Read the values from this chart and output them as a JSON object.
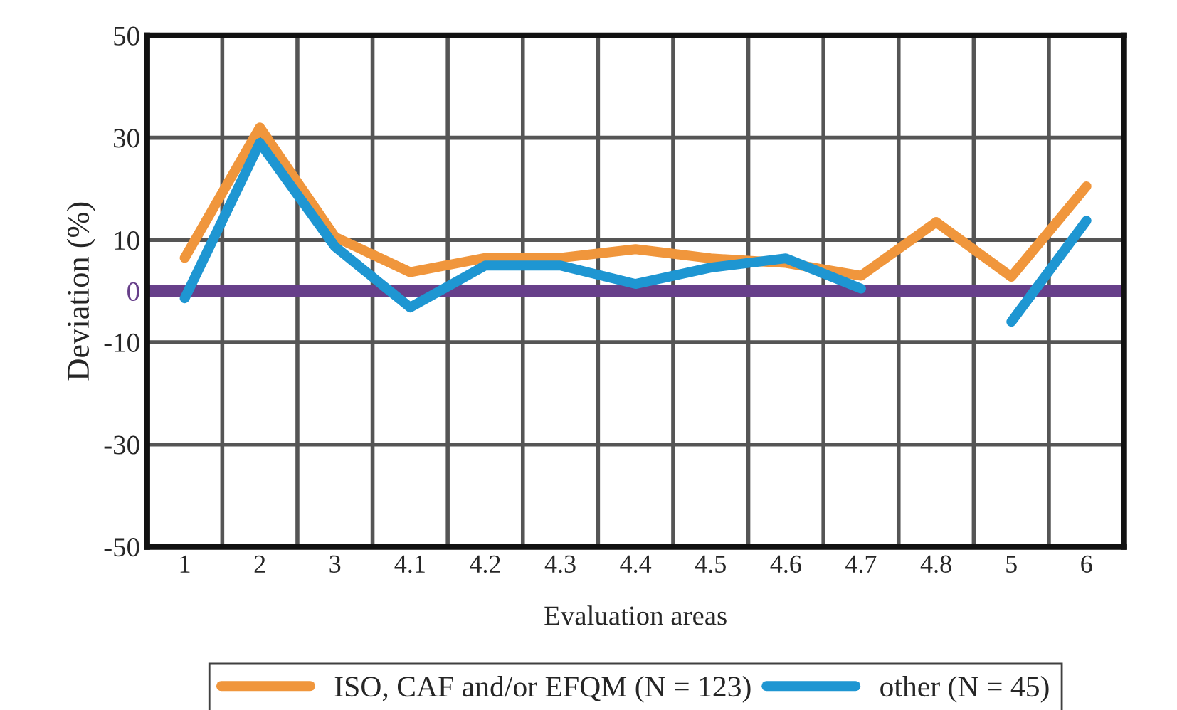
{
  "chart_data": {
    "type": "line",
    "xlabel": "Evaluation areas",
    "ylabel": "Deviation (%)",
    "categories": [
      "1",
      "2",
      "3",
      "4.1",
      "4.2",
      "4.3",
      "4.4",
      "4.5",
      "4.6",
      "4.7",
      "4.8",
      "5",
      "6"
    ],
    "series": [
      {
        "name": "ISO, CAF and/or EFQM (N = 123)",
        "color": "#f0963c",
        "values": [
          6.5,
          32,
          10.6,
          3.7,
          6.5,
          6.5,
          8.2,
          6.4,
          5.5,
          3,
          13.5,
          2.8,
          20.5
        ]
      },
      {
        "name": "other (N = 45)",
        "color": "#1e96d2",
        "values": [
          -1.4,
          29,
          8.7,
          -3.2,
          5,
          5,
          1.4,
          4.6,
          6.4,
          0.5,
          null,
          -6,
          13.8
        ]
      }
    ],
    "ylim": [
      -50,
      50
    ],
    "yticks": [
      -50,
      -30,
      -10,
      0,
      10,
      30,
      50
    ],
    "ref_lines": [
      {
        "axis": "y",
        "value": 0,
        "color": "#673f8a"
      }
    ],
    "grid": true,
    "legend": "bottom",
    "line_style": "solid",
    "marker": "none"
  }
}
